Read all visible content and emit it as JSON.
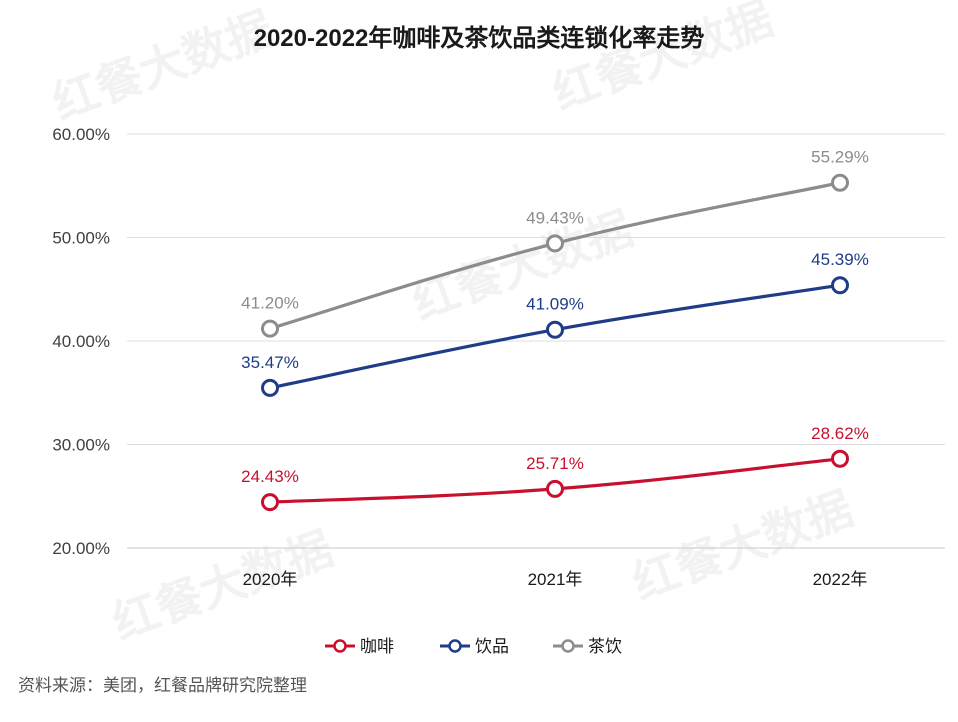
{
  "chart_data": {
    "type": "line",
    "title": "2020-2022年咖啡及茶饮品类连锁化率走势",
    "categories": [
      "2020年",
      "2021年",
      "2022年"
    ],
    "y_ticks": [
      "60.00%",
      "50.00%",
      "40.00%",
      "30.00%",
      "20.00%"
    ],
    "ylim": [
      20,
      60
    ],
    "grid": true,
    "legend_position": "bottom",
    "series": [
      {
        "name": "咖啡",
        "color": "#c8102e",
        "values": [
          24.43,
          25.71,
          28.62
        ],
        "labels": [
          "24.43%",
          "25.71%",
          "28.62%"
        ]
      },
      {
        "name": "饮品",
        "color": "#1f3c88",
        "values": [
          35.47,
          41.09,
          45.39
        ],
        "labels": [
          "35.47%",
          "41.09%",
          "45.39%"
        ]
      },
      {
        "name": "茶饮",
        "color": "#8c8c8c",
        "values": [
          41.2,
          49.43,
          55.29
        ],
        "labels": [
          "41.20%",
          "49.43%",
          "55.29%"
        ]
      }
    ]
  },
  "source": "资料来源：美团，红餐品牌研究院整理",
  "watermark": "红餐大数据"
}
